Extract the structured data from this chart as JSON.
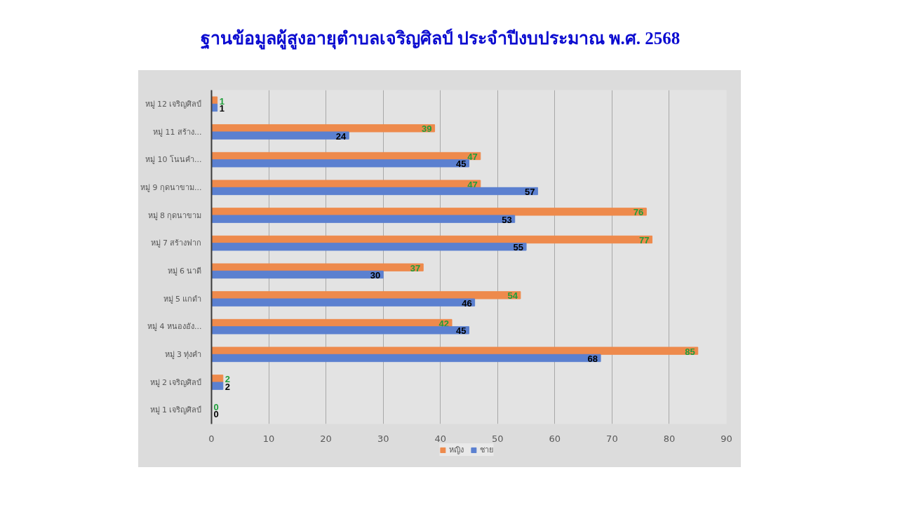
{
  "chart_data": {
    "type": "bar",
    "orientation": "horizontal",
    "title": "ฐานข้อมูลผู้สูงอายุตำบลเจริญศิลป์ ประจำปีงบประมาณ พ.ศ. 2568",
    "categories": [
      "หมู่ 12 เจริญศิลป์",
      "หมู่ 11 สร้าง...",
      "หมู่ 10 โนนคำ...",
      "หมู่ 9 กุดนาขาม...",
      "หมู่ 8 กุดนาขาม",
      "หมู่ 7 สร้างฟาก",
      "หมู่ 6 นาดี",
      "หมู่ 5 แกดำ",
      "หมู่ 4 หนองอัง...",
      "หมู่ 3 ทุ่งคำ",
      "หมู่ 2 เจริญศิลป์",
      "หมู่ 1 เจริญศิลป์"
    ],
    "series": [
      {
        "name": "หญิง",
        "color": "#ee8a4c",
        "values": [
          1,
          39,
          47,
          47,
          76,
          77,
          37,
          54,
          42,
          85,
          2,
          0
        ]
      },
      {
        "name": "ชาย",
        "color": "#5b80d0",
        "values": [
          1,
          24,
          45,
          57,
          53,
          55,
          30,
          46,
          45,
          68,
          2,
          0
        ]
      }
    ],
    "xlim": [
      0,
      90
    ],
    "xticks": [
      0,
      10,
      20,
      30,
      40,
      50,
      60,
      70,
      80,
      90
    ],
    "grid": "x",
    "legend": "bottom",
    "data_labels": true
  }
}
